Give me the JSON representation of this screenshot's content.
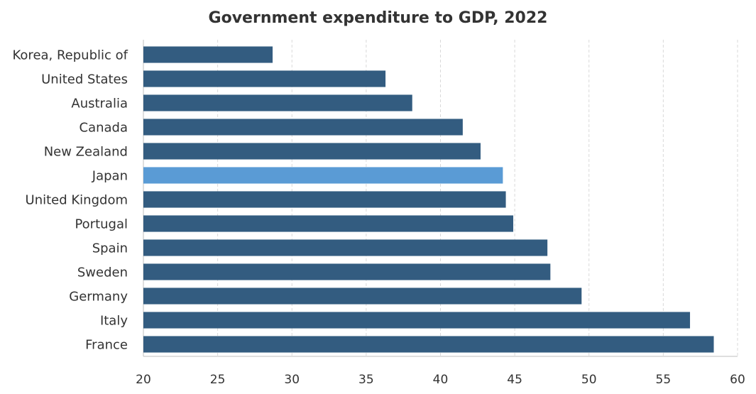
{
  "chart_data": {
    "type": "bar",
    "orientation": "horizontal",
    "title": "Government expenditure to GDP, 2022",
    "xlabel": "",
    "ylabel": "",
    "xlim": [
      20,
      60
    ],
    "xticks": [
      20,
      25,
      30,
      35,
      40,
      45,
      50,
      55,
      60
    ],
    "grid": true,
    "categories": [
      "Korea, Republic of",
      "United States",
      "Australia",
      "Canada",
      "New Zealand",
      "Japan",
      "United Kingdom",
      "Portugal",
      "Spain",
      "Sweden",
      "Germany",
      "Italy",
      "France"
    ],
    "values": [
      28.7,
      36.3,
      38.1,
      41.5,
      42.7,
      44.2,
      44.4,
      44.9,
      47.2,
      47.4,
      49.5,
      56.8,
      58.4
    ],
    "highlight": "Japan",
    "colors": {
      "bar": "#335c80",
      "highlight": "#5a9bd5",
      "grid": "#d9d9d9",
      "axis": "#bfbfbf",
      "text": "#333333"
    }
  }
}
